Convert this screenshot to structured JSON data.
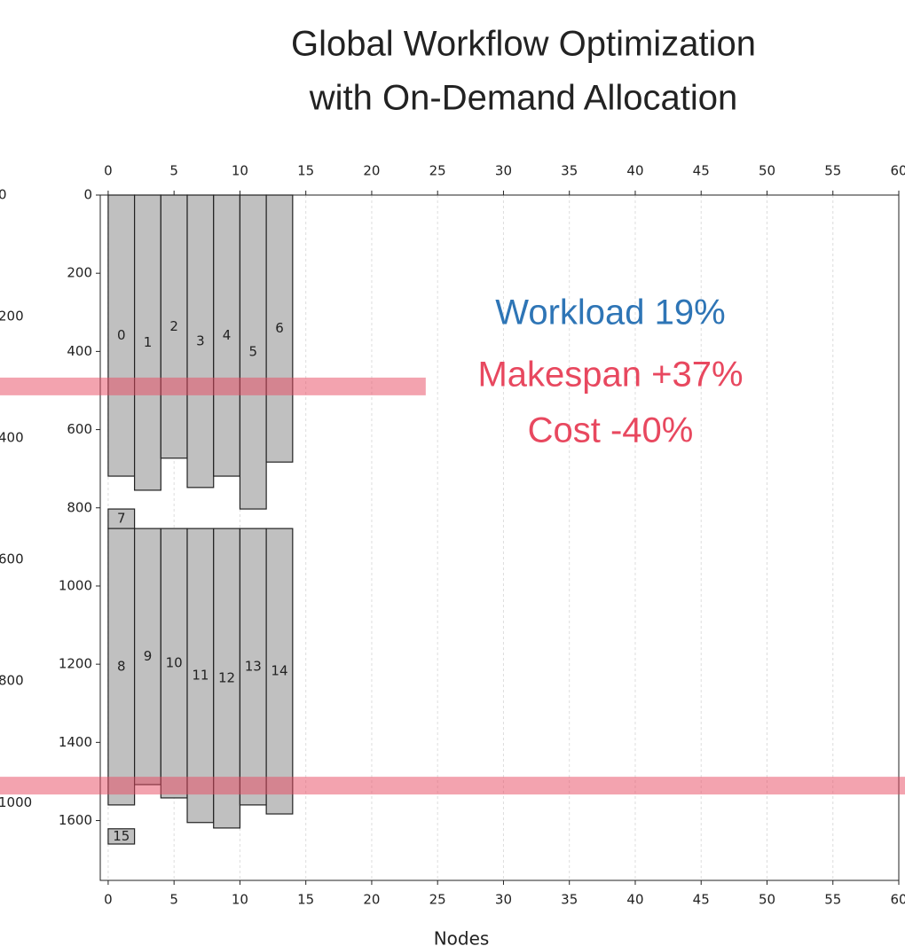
{
  "chart_data": {
    "type": "gantt",
    "title": [
      "Global Workflow Optimization",
      "with On-Demand Allocation"
    ],
    "xlabel": "Nodes",
    "xlim": [
      -0.6,
      60
    ],
    "xticks": [
      0,
      5,
      10,
      15,
      20,
      25,
      30,
      35,
      40,
      45,
      50,
      55,
      60
    ],
    "ylim": [
      0,
      1753
    ],
    "yticks": [
      0,
      200,
      400,
      600,
      800,
      1000,
      1200,
      1400,
      1600
    ],
    "y2lim": [
      0,
      1128
    ],
    "y2ticks": [
      0,
      200,
      400,
      600,
      800,
      1000
    ],
    "inverted_y": true,
    "grid": true,
    "color": "#c0c0c0",
    "tasks": [
      {
        "label": "0",
        "x": [
          0,
          2
        ],
        "y": [
          0,
          719
        ]
      },
      {
        "label": "1",
        "x": [
          2,
          4
        ],
        "y": [
          0,
          755
        ]
      },
      {
        "label": "2",
        "x": [
          4,
          6
        ],
        "y": [
          0,
          673
        ]
      },
      {
        "label": "3",
        "x": [
          6,
          8
        ],
        "y": [
          0,
          748
        ]
      },
      {
        "label": "4",
        "x": [
          8,
          10
        ],
        "y": [
          0,
          719
        ]
      },
      {
        "label": "5",
        "x": [
          10,
          12
        ],
        "y": [
          0,
          803
        ]
      },
      {
        "label": "6",
        "x": [
          12,
          14
        ],
        "y": [
          0,
          683
        ]
      },
      {
        "label": "7",
        "x": [
          0,
          2
        ],
        "y": [
          803,
          853
        ]
      },
      {
        "label": "8",
        "x": [
          0,
          2
        ],
        "y": [
          853,
          1560
        ]
      },
      {
        "label": "9",
        "x": [
          2,
          4
        ],
        "y": [
          853,
          1508
        ]
      },
      {
        "label": "10",
        "x": [
          4,
          6
        ],
        "y": [
          853,
          1542
        ]
      },
      {
        "label": "11",
        "x": [
          6,
          8
        ],
        "y": [
          853,
          1605
        ]
      },
      {
        "label": "12",
        "x": [
          8,
          10
        ],
        "y": [
          853,
          1619
        ]
      },
      {
        "label": "13",
        "x": [
          10,
          12
        ],
        "y": [
          853,
          1560
        ]
      },
      {
        "label": "14",
        "x": [
          12,
          14
        ],
        "y": [
          853,
          1583
        ]
      },
      {
        "label": "15",
        "x": [
          0,
          2
        ],
        "y": [
          1621,
          1660
        ]
      }
    ],
    "hlines": [
      {
        "value": 315,
        "axis": "y2",
        "xmax": 24.1,
        "color": "#e8485f"
      },
      {
        "value": 972,
        "axis": "y2",
        "color": "#e8485f"
      }
    ],
    "annotations": [
      {
        "text": "Workload 19%",
        "color": "#2e75b6"
      },
      {
        "text": "Makespan +37%",
        "color": "#e8485f"
      },
      {
        "text": "Cost -40%",
        "color": "#e8485f"
      }
    ]
  }
}
